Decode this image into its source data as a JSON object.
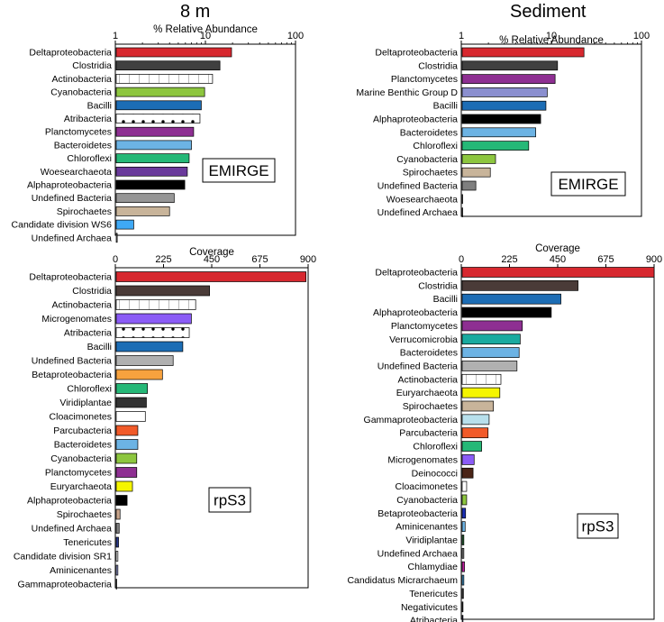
{
  "titles": {
    "left": "8 m",
    "right": "Sediment"
  },
  "chart_data": [
    {
      "id": "emirge_8m",
      "type": "bar",
      "orientation": "horizontal",
      "scale": "log",
      "xlabel": "% Relative Abundance",
      "xlim": [
        1,
        100
      ],
      "ticks": [
        "1",
        "10",
        "100"
      ],
      "tag": "EMIRGE",
      "categories": [
        "Deltaproteobacteria",
        "Clostridia",
        "Actinobacteria",
        "Cyanobacteria",
        "Bacilli",
        "Atribacteria",
        "Planctomycetes",
        "Bacteroidetes",
        "Chloroflexi",
        "Woesearchaeota",
        "Alphaproteobacteria",
        "Undefined Bacteria",
        "Spirochaetes",
        "Candidate division WS6",
        "Undefined Archaea"
      ],
      "values": [
        19.5,
        14.5,
        12.0,
        9.8,
        9.0,
        8.7,
        7.4,
        7.0,
        6.6,
        6.3,
        5.9,
        4.5,
        4.0,
        1.6,
        1.05
      ],
      "colors": [
        "#d7282f",
        "#404040",
        "pattern-grid",
        "#8dc63f",
        "#1c6db5",
        "pattern-dots",
        "#8e2f92",
        "#6cb3e4",
        "#25b877",
        "#6a3a9b",
        "#000000",
        "#969696",
        "#c8b49a",
        "#3fa9f5",
        "#7f7f7f"
      ]
    },
    {
      "id": "emirge_sediment",
      "type": "bar",
      "orientation": "horizontal",
      "scale": "log",
      "xlabel": "% Relative Abundance",
      "xlim": [
        1,
        100
      ],
      "ticks": [
        "1",
        "10",
        "100"
      ],
      "tag": "EMIRGE",
      "categories": [
        "Deltaproteobacteria",
        "Clostridia",
        "Planctomycetes",
        "Marine Benthic Group D",
        "Bacilli",
        "Alphaproteobacteria",
        "Bacteroidetes",
        "Chloroflexi",
        "Cyanobacteria",
        "Spirochaetes",
        "Undefined Bacteria",
        "Woesearchaeota",
        "Undefined Archaea"
      ],
      "values": [
        23.0,
        11.7,
        11.0,
        9.0,
        8.7,
        7.6,
        6.7,
        5.6,
        2.4,
        2.1,
        1.45,
        1.03,
        1.02
      ],
      "colors": [
        "#d7282f",
        "#404040",
        "#8e2f92",
        "#8b8fcf",
        "#1c6db5",
        "#000000",
        "#6cb3e4",
        "#25b877",
        "#8dc63f",
        "#c8b49a",
        "#7f7f7f",
        "#6a3a9b",
        "#7f7f7f"
      ]
    },
    {
      "id": "rps3_8m",
      "type": "bar",
      "orientation": "horizontal",
      "scale": "linear",
      "xlabel": "Coverage",
      "xlim": [
        0,
        900
      ],
      "ticks": [
        "0",
        "225",
        "450",
        "675",
        "900"
      ],
      "tag": "rpS3",
      "categories": [
        "Deltaproteobacteria",
        "Clostridia",
        "Actinobacteria",
        "Microgenomates",
        "Atribacteria",
        "Bacilli",
        "Undefined Bacteria",
        "Betaproteobacteria",
        "Chloroflexi",
        "Viridiplantae",
        "Cloacimonetes",
        "Parcubacteria",
        "Bacteroidetes",
        "Cyanobacteria",
        "Planctomycetes",
        "Euryarchaeota",
        "Alphaproteobacteria",
        "Spirochaetes",
        "Undefined Archaea",
        "Tenericutes",
        "Candidate division SR1",
        "Aminicenantes",
        "Gammaproteobacteria"
      ],
      "values": [
        890,
        440,
        375,
        355,
        345,
        315,
        270,
        220,
        150,
        145,
        140,
        105,
        105,
        100,
        100,
        80,
        55,
        22,
        18,
        15,
        12,
        12,
        3
      ],
      "colors": [
        "#d7282f",
        "#4a3b38",
        "pattern-grid",
        "#8b5cf6",
        "pattern-dots",
        "#1c6db5",
        "#b0b0b0",
        "#f7a23e",
        "#25b877",
        "#333333",
        "#ffffff",
        "#f15a29",
        "#6cb3e4",
        "#8dc63f",
        "#8e2f92",
        "#f5f500",
        "#000000",
        "#c8a48a",
        "#7f7f7f",
        "#2b3b8f",
        "#ffffff",
        "#9aa0d6",
        "#d0d0d0"
      ]
    },
    {
      "id": "rps3_sediment",
      "type": "bar",
      "orientation": "horizontal",
      "scale": "linear",
      "xlabel": "Coverage",
      "xlim": [
        0,
        900
      ],
      "ticks": [
        "0",
        "225",
        "450",
        "675",
        "900"
      ],
      "tag": "rpS3",
      "categories": [
        "Deltaproteobacteria",
        "Clostridia",
        "Bacilli",
        "Alphaproteobacteria",
        "Planctomycetes",
        "Verrucomicrobia",
        "Bacteroidetes",
        "Undefined Bacteria",
        "Actinobacteria",
        "Euryarchaeota",
        "Spirochaetes",
        "Gammaproteobacteria",
        "Parcubacteria",
        "Chloroflexi",
        "Microgenomates",
        "Deinococci",
        "Cloacimonetes",
        "Cyanobacteria",
        "Betaproteobacteria",
        "Aminicenantes",
        "Viridiplantae",
        "Undefined Archaea",
        "Chlamydiae",
        "Candidatus Micrarchaeum",
        "Tenericutes",
        "Negativicutes",
        "Atribacteria"
      ],
      "values": [
        900,
        545,
        465,
        420,
        285,
        275,
        270,
        260,
        185,
        180,
        150,
        130,
        125,
        95,
        60,
        55,
        25,
        25,
        20,
        18,
        12,
        12,
        15,
        12,
        10,
        8,
        8
      ],
      "colors": [
        "#d7282f",
        "#4a3b38",
        "#1c6db5",
        "#000000",
        "#8e2f92",
        "#1aaa9f",
        "#6cb3e4",
        "#b0b0b0",
        "pattern-grid",
        "#f5f500",
        "#c8b49a",
        "#b8e0ec",
        "#f15a29",
        "#25b877",
        "#8b5cf6",
        "#4a2417",
        "#ffffff",
        "#8dc63f",
        "#1b2fb5",
        "#6cb3e4",
        "#2d6b3a",
        "#8a8a8a",
        "#c020a0",
        "#4aa0d8",
        "#444444",
        "#555555",
        "#3a3a7a"
      ]
    }
  ]
}
